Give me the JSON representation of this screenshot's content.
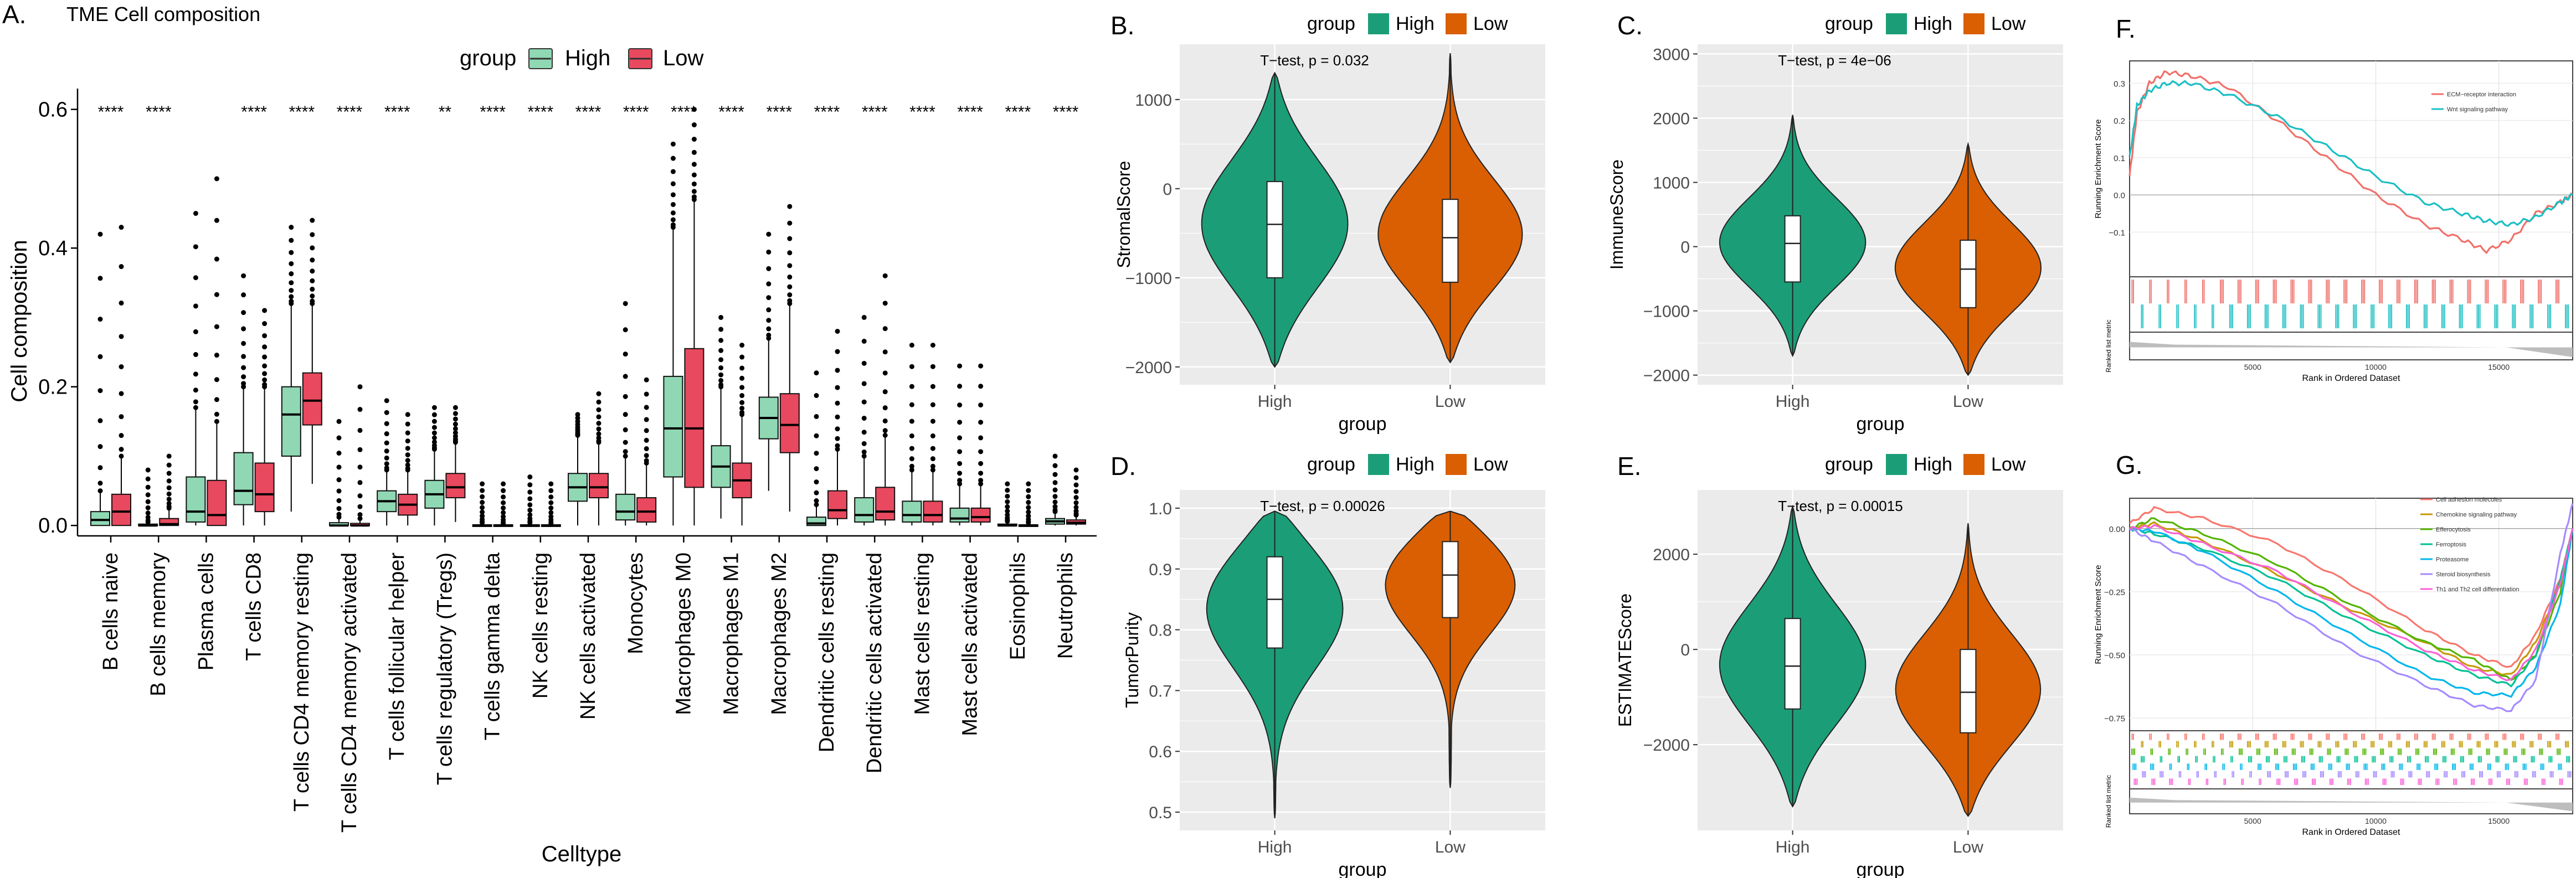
{
  "colors": {
    "high_box": "#8fd8b3",
    "low_box": "#e8495e",
    "high_violin": "#1b9e77",
    "low_violin": "#d95f02",
    "panel_bg": "#ebebeb",
    "grid": "#ffffff",
    "ecm": "#f0706a",
    "wnt": "#1bbfc4",
    "cam": "#f8766d",
    "chemo": "#c49a00",
    "effero": "#53b400",
    "ferro": "#00c094",
    "prot": "#00b6eb",
    "steroid": "#a58aff",
    "th1": "#fb61d7"
  },
  "panelA": {
    "letter": "A.",
    "title": "TME Cell composition",
    "legend_title": "group",
    "legend_high": "High",
    "legend_low": "Low",
    "ylabel": "Cell composition",
    "xlabel": "Celltype",
    "yticks": [
      "0.0",
      "0.2",
      "0.4",
      "0.6"
    ],
    "chart_data": {
      "type": "box",
      "ylim": [
        -0.015,
        0.63
      ],
      "categories": [
        "B cells naive",
        "B cells memory",
        "Plasma cells",
        "T cells CD8",
        "T cells CD4 memory resting",
        "T cells CD4 memory activated",
        "T cells follicular helper",
        "T cells regulatory (Tregs)",
        "T cells gamma delta",
        "NK cells resting",
        "NK cells activated",
        "Monocytes",
        "Macrophages M0",
        "Macrophages M1",
        "Macrophages M2",
        "Dendritic cells resting",
        "Dendritic cells activated",
        "Mast cells resting",
        "Mast cells activated",
        "Eosinophils",
        "Neutrophils"
      ],
      "significance": [
        "****",
        "****",
        "",
        "****",
        "****",
        "****",
        "****",
        "**",
        "****",
        "****",
        "****",
        "****",
        "****",
        "****",
        "****",
        "****",
        "****",
        "****",
        "****",
        "****",
        "****"
      ],
      "series": [
        {
          "name": "High",
          "boxes": [
            [
              0,
              0,
              0.008,
              0.02,
              0.05
            ],
            [
              0,
              0,
              0,
              0.002,
              0.005
            ],
            [
              0,
              0.005,
              0.02,
              0.07,
              0.17
            ],
            [
              0,
              0.03,
              0.05,
              0.105,
              0.2
            ],
            [
              0.02,
              0.1,
              0.16,
              0.2,
              0.32
            ],
            [
              0,
              0,
              0,
              0.004,
              0.012
            ],
            [
              0,
              0.02,
              0.035,
              0.05,
              0.08
            ],
            [
              0,
              0.025,
              0.045,
              0.065,
              0.11
            ],
            [
              0,
              0,
              0,
              0.001,
              0.004
            ],
            [
              0,
              0,
              0,
              0.001,
              0.004
            ],
            [
              0,
              0.035,
              0.055,
              0.075,
              0.13
            ],
            [
              0,
              0.008,
              0.02,
              0.045,
              0.1
            ],
            [
              0,
              0.07,
              0.14,
              0.215,
              0.43
            ],
            [
              0.01,
              0.055,
              0.085,
              0.115,
              0.2
            ],
            [
              0.05,
              0.125,
              0.155,
              0.185,
              0.27
            ],
            [
              0,
              0,
              0.003,
              0.012,
              0.03
            ],
            [
              0,
              0.005,
              0.015,
              0.04,
              0.1
            ],
            [
              0,
              0.005,
              0.015,
              0.035,
              0.08
            ],
            [
              0,
              0.005,
              0.01,
              0.025,
              0.06
            ],
            [
              0,
              0,
              0,
              0.002,
              0.006
            ],
            [
              0,
              0.002,
              0.006,
              0.01,
              0.02
            ]
          ]
        },
        {
          "name": "Low",
          "boxes": [
            [
              0,
              0,
              0.02,
              0.045,
              0.1
            ],
            [
              0,
              0,
              0.002,
              0.01,
              0.025
            ],
            [
              0,
              0,
              0.015,
              0.065,
              0.15
            ],
            [
              0,
              0.02,
              0.045,
              0.09,
              0.2
            ],
            [
              0.06,
              0.145,
              0.18,
              0.22,
              0.32
            ],
            [
              0,
              0,
              0,
              0.003,
              0.01
            ],
            [
              0,
              0.015,
              0.03,
              0.045,
              0.08
            ],
            [
              0.005,
              0.04,
              0.055,
              0.075,
              0.12
            ],
            [
              0,
              0,
              0,
              0.001,
              0.003
            ],
            [
              0,
              0,
              0,
              0.001,
              0.003
            ],
            [
              0,
              0.04,
              0.055,
              0.075,
              0.12
            ],
            [
              0,
              0.005,
              0.02,
              0.04,
              0.09
            ],
            [
              0,
              0.055,
              0.14,
              0.255,
              0.47
            ],
            [
              0,
              0.04,
              0.065,
              0.09,
              0.16
            ],
            [
              0.02,
              0.105,
              0.145,
              0.19,
              0.32
            ],
            [
              0,
              0.01,
              0.022,
              0.05,
              0.11
            ],
            [
              0,
              0.008,
              0.02,
              0.055,
              0.13
            ],
            [
              0,
              0.005,
              0.015,
              0.035,
              0.08
            ],
            [
              0,
              0.005,
              0.012,
              0.025,
              0.06
            ],
            [
              0,
              0,
              0,
              0.001,
              0.004
            ],
            [
              0,
              0.002,
              0.004,
              0.008,
              0.015
            ]
          ]
        }
      ],
      "outlier_max": [
        [
          0.42,
          0.43
        ],
        [
          0.08,
          0.1
        ],
        [
          0.45,
          0.5
        ],
        [
          0.36,
          0.31
        ],
        [
          0.43,
          0.44
        ],
        [
          0.15,
          0.2
        ],
        [
          0.18,
          0.16
        ],
        [
          0.17,
          0.17
        ],
        [
          0.06,
          0.06
        ],
        [
          0.07,
          0.06
        ],
        [
          0.16,
          0.19
        ],
        [
          0.32,
          0.21
        ],
        [
          0.55,
          0.6
        ],
        [
          0.3,
          0.26
        ],
        [
          0.42,
          0.46
        ],
        [
          0.22,
          0.28
        ],
        [
          0.3,
          0.36
        ],
        [
          0.26,
          0.26
        ],
        [
          0.23,
          0.23
        ],
        [
          0.06,
          0.06
        ],
        [
          0.1,
          0.08
        ]
      ]
    }
  },
  "panelB": {
    "letter": "B.",
    "legend_title": "group",
    "legend_high": "High",
    "legend_low": "Low",
    "pval": "T−test, p = 0.032",
    "ylabel": "StromalScore",
    "xlabel": "group",
    "yticks": [
      "−2000",
      "−1000",
      "0",
      "1000"
    ],
    "chart_data": {
      "type": "violin",
      "ylim": [
        -2200,
        1620
      ],
      "yticks": [
        -2000,
        -1000,
        0,
        1000
      ],
      "categories": [
        "High",
        "Low"
      ],
      "series": [
        {
          "name": "High",
          "min": -2000,
          "q1": -1000,
          "median": -400,
          "q3": 80,
          "max": 1300
        },
        {
          "name": "Low",
          "min": -1950,
          "q1": -1050,
          "median": -550,
          "q3": -120,
          "max": 1520
        }
      ]
    }
  },
  "panelC": {
    "letter": "C.",
    "legend_title": "group",
    "legend_high": "High",
    "legend_low": "Low",
    "pval": "T−test, p = 4e−06",
    "ylabel": "ImmuneScore",
    "xlabel": "group",
    "yticks": [
      "−2000",
      "−1000",
      "0",
      "1000",
      "2000",
      "3000"
    ],
    "chart_data": {
      "type": "violin",
      "ylim": [
        -2150,
        3150
      ],
      "yticks": [
        -2000,
        -1000,
        0,
        1000,
        2000,
        3000
      ],
      "categories": [
        "High",
        "Low"
      ],
      "series": [
        {
          "name": "High",
          "min": -1700,
          "q1": -550,
          "median": 50,
          "q3": 480,
          "max": 2050
        },
        {
          "name": "Low",
          "min": -2000,
          "q1": -950,
          "median": -350,
          "q3": 100,
          "max": 1600
        }
      ]
    }
  },
  "panelD": {
    "letter": "D.",
    "legend_title": "group",
    "legend_high": "High",
    "legend_low": "Low",
    "pval": "T−test, p = 0.00026",
    "ylabel": "TumorPurity",
    "xlabel": "group",
    "yticks": [
      "0.5",
      "0.6",
      "0.7",
      "0.8",
      "0.9",
      "1.0"
    ],
    "chart_data": {
      "type": "violin",
      "ylim": [
        0.47,
        1.03
      ],
      "yticks": [
        0.5,
        0.6,
        0.7,
        0.8,
        0.9,
        1.0
      ],
      "categories": [
        "High",
        "Low"
      ],
      "series": [
        {
          "name": "High",
          "min": 0.49,
          "q1": 0.77,
          "median": 0.85,
          "q3": 0.92,
          "max": 0.995
        },
        {
          "name": "Low",
          "min": 0.54,
          "q1": 0.82,
          "median": 0.89,
          "q3": 0.945,
          "max": 0.995
        }
      ]
    }
  },
  "panelE": {
    "letter": "E.",
    "legend_title": "group",
    "legend_high": "High",
    "legend_low": "Low",
    "pval": "T−test, p = 0.00015",
    "ylabel": "ESTIMATEScore",
    "xlabel": "group",
    "yticks": [
      "−2000",
      "0",
      "2000"
    ],
    "chart_data": {
      "type": "violin",
      "ylim": [
        -3800,
        3350
      ],
      "yticks": [
        -2000,
        0,
        2000
      ],
      "categories": [
        "High",
        "Low"
      ],
      "series": [
        {
          "name": "High",
          "min": -3300,
          "q1": -1250,
          "median": -350,
          "q3": 650,
          "max": 3000
        },
        {
          "name": "Low",
          "min": -3500,
          "q1": -1750,
          "median": -900,
          "q3": 0,
          "max": 2650
        }
      ]
    }
  },
  "panelF": {
    "letter": "F.",
    "ylabel": "Running Enrichment Score",
    "ylabel2": "Ranked list metric",
    "xlabel": "Rank in Ordered Dataset",
    "yticks": [
      "0.3",
      "0.2",
      "0.1",
      "0.0",
      "−0.1"
    ],
    "xticks": [
      "5000",
      "10000",
      "15000"
    ],
    "legend": [
      "ECM−receptor interaction",
      "Wnt signaling pathway"
    ],
    "chart_data": {
      "type": "line",
      "xlim": [
        0,
        18000
      ],
      "ylim": [
        -0.22,
        0.36
      ],
      "series": [
        {
          "name": "ECM−receptor interaction",
          "x": [
            0,
            300,
            800,
            1500,
            2500,
            4000,
            6000,
            8000,
            10000,
            12000,
            13500,
            14500,
            15500,
            16500,
            17500,
            18000
          ],
          "y": [
            0.05,
            0.22,
            0.3,
            0.33,
            0.32,
            0.29,
            0.2,
            0.1,
            0.0,
            -0.08,
            -0.12,
            -0.15,
            -0.12,
            -0.05,
            -0.02,
            0.0
          ]
        },
        {
          "name": "Wnt signaling pathway",
          "x": [
            0,
            300,
            800,
            1500,
            2500,
            4000,
            6000,
            8000,
            10000,
            12000,
            13500,
            14500,
            15500,
            16500,
            17500,
            18000
          ],
          "y": [
            0.1,
            0.24,
            0.28,
            0.3,
            0.3,
            0.27,
            0.21,
            0.13,
            0.05,
            -0.02,
            -0.05,
            -0.07,
            -0.08,
            -0.06,
            -0.02,
            0.0
          ]
        }
      ]
    }
  },
  "panelG": {
    "letter": "G.",
    "ylabel": "Running Enrichment Score",
    "ylabel2": "Ranked list metric",
    "xlabel": "Rank in Ordered Dataset",
    "yticks": [
      "0.00",
      "−0.25",
      "−0.50",
      "−0.75"
    ],
    "xticks": [
      "5000",
      "10000",
      "15000"
    ],
    "legend": [
      "Cell adhesion molecules",
      "Chemokine signaling pathway",
      "Efferocytosis",
      "Ferroptosis",
      "Proteasome",
      "Steroid biosynthesis",
      "Th1 and Th2 cell differentiation"
    ],
    "chart_data": {
      "type": "line",
      "xlim": [
        0,
        18000
      ],
      "ylim": [
        -0.8,
        0.12
      ],
      "series": [
        {
          "name": "Cell adhesion molecules",
          "x": [
            0,
            1000,
            3000,
            6000,
            9000,
            12000,
            14000,
            15500,
            16500,
            17500,
            18000
          ],
          "y": [
            0.02,
            0.08,
            0.04,
            -0.06,
            -0.22,
            -0.4,
            -0.5,
            -0.55,
            -0.42,
            -0.2,
            0.0
          ]
        },
        {
          "name": "Chemokine signaling pathway",
          "x": [
            0,
            1000,
            3000,
            6000,
            9000,
            12000,
            14000,
            15500,
            16500,
            17500,
            18000
          ],
          "y": [
            0.0,
            0.02,
            -0.05,
            -0.18,
            -0.32,
            -0.45,
            -0.55,
            -0.58,
            -0.45,
            -0.22,
            0.0
          ]
        },
        {
          "name": "Efferocytosis",
          "x": [
            0,
            1000,
            3000,
            6000,
            9000,
            12000,
            14000,
            15500,
            16500,
            17500,
            18000
          ],
          "y": [
            0.0,
            0.04,
            -0.02,
            -0.14,
            -0.3,
            -0.45,
            -0.52,
            -0.6,
            -0.5,
            -0.25,
            0.0
          ]
        },
        {
          "name": "Ferroptosis",
          "x": [
            0,
            1000,
            3000,
            6000,
            9000,
            12000,
            14000,
            15500,
            16500,
            17500,
            18000
          ],
          "y": [
            0.0,
            -0.02,
            -0.08,
            -0.2,
            -0.36,
            -0.5,
            -0.58,
            -0.62,
            -0.5,
            -0.2,
            0.0
          ]
        },
        {
          "name": "Proteasome",
          "x": [
            0,
            1000,
            3000,
            6000,
            9000,
            12000,
            14000,
            15500,
            16500,
            17500,
            18000
          ],
          "y": [
            0.0,
            -0.01,
            -0.09,
            -0.25,
            -0.42,
            -0.58,
            -0.65,
            -0.66,
            -0.55,
            -0.3,
            0.0
          ]
        },
        {
          "name": "Steroid biosynthesis",
          "x": [
            0,
            1000,
            3000,
            6000,
            9000,
            12000,
            14000,
            15500,
            16500,
            17500,
            18000
          ],
          "y": [
            0.0,
            -0.05,
            -0.15,
            -0.3,
            -0.48,
            -0.62,
            -0.7,
            -0.72,
            -0.6,
            -0.1,
            0.1
          ]
        },
        {
          "name": "Th1 and Th2 cell differentiation",
          "x": [
            0,
            1000,
            3000,
            6000,
            9000,
            12000,
            14000,
            15500,
            16500,
            17500,
            18000
          ],
          "y": [
            0.0,
            0.01,
            -0.06,
            -0.17,
            -0.33,
            -0.48,
            -0.56,
            -0.6,
            -0.48,
            -0.22,
            0.0
          ]
        }
      ]
    }
  }
}
